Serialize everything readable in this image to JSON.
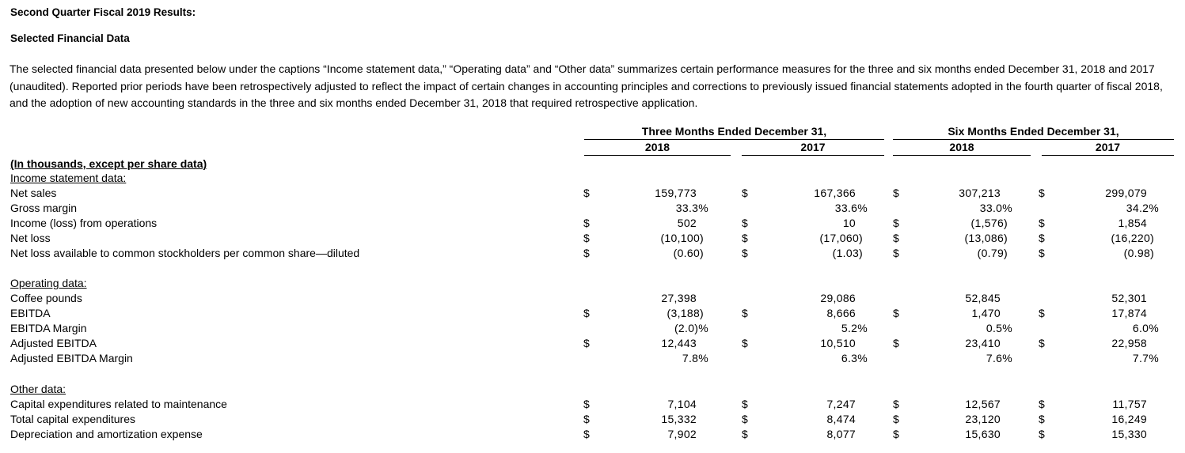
{
  "header": {
    "title": "Second Quarter Fiscal 2019 Results:",
    "subtitle": "Selected Financial Data"
  },
  "intro": "The selected financial data presented below under the captions “Income statement data,” “Operating data” and “Other data” summarizes certain performance measures for the three and six months ended December 31, 2018 and 2017 (unaudited). Reported prior periods have been retrospectively adjusted to reflect the impact of certain changes in accounting principles and corrections to previously issued financial statements adopted in the fourth quarter of fiscal 2018, and the adoption of new accounting standards in the three and six months ended December 31, 2018 that required retrospective application.",
  "table": {
    "group_headers": [
      "Three Months Ended December 31,",
      "Six Months Ended December 31,"
    ],
    "year_headers": [
      "2018",
      "2017",
      "2018",
      "2017"
    ],
    "units_note": "(In thousands, except per share data)",
    "sections": [
      {
        "title": "Income statement data:",
        "rows": [
          {
            "label": "Net sales",
            "currency": [
              "$",
              "$",
              "$",
              "$"
            ],
            "values": [
              "159,773",
              "167,366",
              "307,213",
              "299,079"
            ]
          },
          {
            "label": "Gross margin",
            "currency": [
              null,
              null,
              null,
              null
            ],
            "values": [
              "33.3%",
              "33.6%",
              "33.0%",
              "34.2%"
            ]
          },
          {
            "label": "Income (loss) from operations",
            "currency": [
              "$",
              "$",
              "$",
              "$"
            ],
            "values": [
              "502",
              "10",
              "(1,576)",
              "1,854"
            ]
          },
          {
            "label": "Net loss",
            "currency": [
              "$",
              "$",
              "$",
              "$"
            ],
            "values": [
              "(10,100)",
              "(17,060)",
              "(13,086)",
              "(16,220)"
            ]
          },
          {
            "label": "Net loss available to common stockholders per common share—diluted",
            "currency": [
              "$",
              "$",
              "$",
              "$"
            ],
            "values": [
              "(0.60)",
              "(1.03)",
              "(0.79)",
              "(0.98)"
            ]
          }
        ]
      },
      {
        "title": "Operating data:",
        "rows": [
          {
            "label": "Coffee pounds",
            "currency": [
              null,
              null,
              null,
              null
            ],
            "values": [
              "27,398",
              "29,086",
              "52,845",
              "52,301"
            ]
          },
          {
            "label": "EBITDA",
            "currency": [
              "$",
              "$",
              "$",
              "$"
            ],
            "values": [
              "(3,188)",
              "8,666",
              "1,470",
              "17,874"
            ]
          },
          {
            "label": "EBITDA Margin",
            "currency": [
              null,
              null,
              null,
              null
            ],
            "values": [
              "(2.0)%",
              "5.2%",
              "0.5%",
              "6.0%"
            ]
          },
          {
            "label": "Adjusted EBITDA",
            "currency": [
              "$",
              "$",
              "$",
              "$"
            ],
            "values": [
              "12,443",
              "10,510",
              "23,410",
              "22,958"
            ]
          },
          {
            "label": "Adjusted EBITDA Margin",
            "currency": [
              null,
              null,
              null,
              null
            ],
            "values": [
              "7.8%",
              "6.3%",
              "7.6%",
              "7.7%"
            ]
          }
        ]
      },
      {
        "title": "Other data:",
        "rows": [
          {
            "label": "Capital expenditures related to maintenance",
            "currency": [
              "$",
              "$",
              "$",
              "$"
            ],
            "values": [
              "7,104",
              "7,247",
              "12,567",
              "11,757"
            ]
          },
          {
            "label": "Total capital expenditures",
            "currency": [
              "$",
              "$",
              "$",
              "$"
            ],
            "values": [
              "15,332",
              "8,474",
              "23,120",
              "16,249"
            ]
          },
          {
            "label": "Depreciation and amortization expense",
            "currency": [
              "$",
              "$",
              "$",
              "$"
            ],
            "values": [
              "7,902",
              "8,077",
              "15,630",
              "15,330"
            ]
          }
        ]
      }
    ]
  }
}
